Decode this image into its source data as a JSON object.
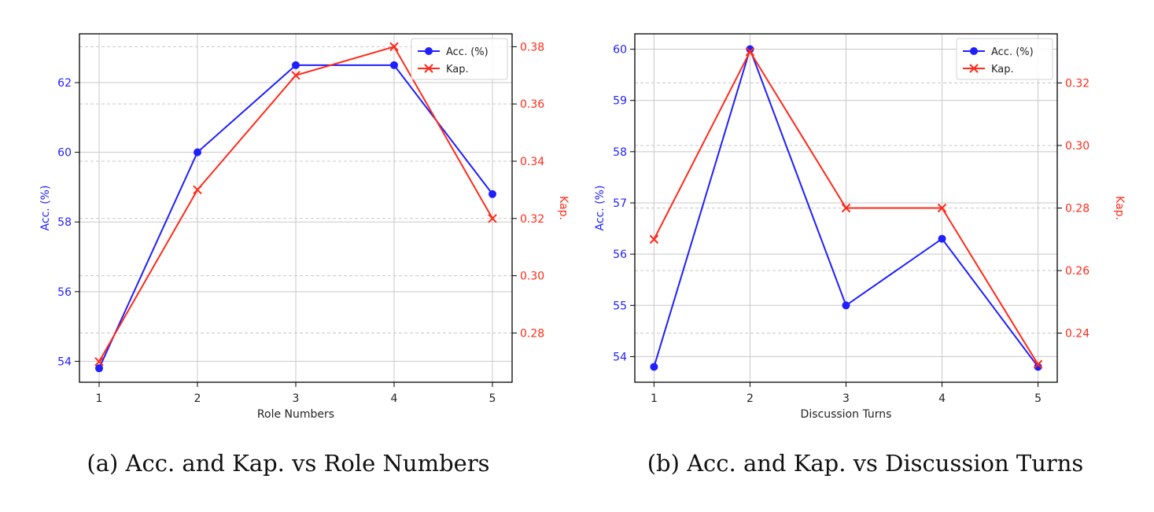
{
  "colors": {
    "acc": "#1f1fff",
    "kap": "#ff2a1a",
    "grid": "#c8c8c8",
    "axis": "#000000"
  },
  "chart_data": [
    {
      "type": "line",
      "caption": "(a) Acc. and Kap. vs Role Numbers",
      "xlabel": "Role Numbers",
      "ylabel_left": "Acc. (%)",
      "ylabel_right": "Kap.",
      "x": [
        1,
        2,
        3,
        4,
        5
      ],
      "xticks": [
        "1",
        "2",
        "3",
        "4",
        "5"
      ],
      "left_axis": {
        "range": [
          53.4,
          63.4
        ],
        "ticks": [
          54,
          56,
          58,
          60,
          62
        ]
      },
      "right_axis": {
        "range": [
          0.2628,
          0.3845
        ],
        "ticks": [
          0.28,
          0.3,
          0.32,
          0.34,
          0.36,
          0.38
        ],
        "tick_labels": [
          "0.28",
          "0.30",
          "0.32",
          "0.34",
          "0.36",
          "0.38"
        ]
      },
      "series": [
        {
          "name": "Acc. (%)",
          "axis": "left",
          "marker": "circle",
          "values": [
            53.8,
            60.0,
            62.5,
            62.5,
            58.8
          ]
        },
        {
          "name": "Kap.",
          "axis": "right",
          "marker": "x",
          "values": [
            0.27,
            0.33,
            0.37,
            0.38,
            0.32
          ]
        }
      ],
      "grid": true,
      "legend_position": "top-right"
    },
    {
      "type": "line",
      "caption": "(b) Acc. and Kap. vs Discussion Turns",
      "xlabel": "Discussion Turns",
      "ylabel_left": "Acc. (%)",
      "ylabel_right": "Kap.",
      "x": [
        1,
        2,
        3,
        4,
        5
      ],
      "xticks": [
        "1",
        "2",
        "3",
        "4",
        "5"
      ],
      "left_axis": {
        "range": [
          53.5,
          60.3
        ],
        "ticks": [
          54,
          55,
          56,
          57,
          58,
          59,
          60
        ]
      },
      "right_axis": {
        "range": [
          0.2243,
          0.3357
        ],
        "ticks": [
          0.24,
          0.26,
          0.28,
          0.3,
          0.32
        ],
        "tick_labels": [
          "0.24",
          "0.26",
          "0.28",
          "0.30",
          "0.32"
        ]
      },
      "series": [
        {
          "name": "Acc. (%)",
          "axis": "left",
          "marker": "circle",
          "values": [
            53.8,
            60.0,
            55.0,
            56.3,
            53.8
          ]
        },
        {
          "name": "Kap.",
          "axis": "right",
          "marker": "x",
          "values": [
            0.27,
            0.33,
            0.28,
            0.28,
            0.23
          ]
        }
      ],
      "grid": true,
      "legend_position": "top-right"
    }
  ]
}
